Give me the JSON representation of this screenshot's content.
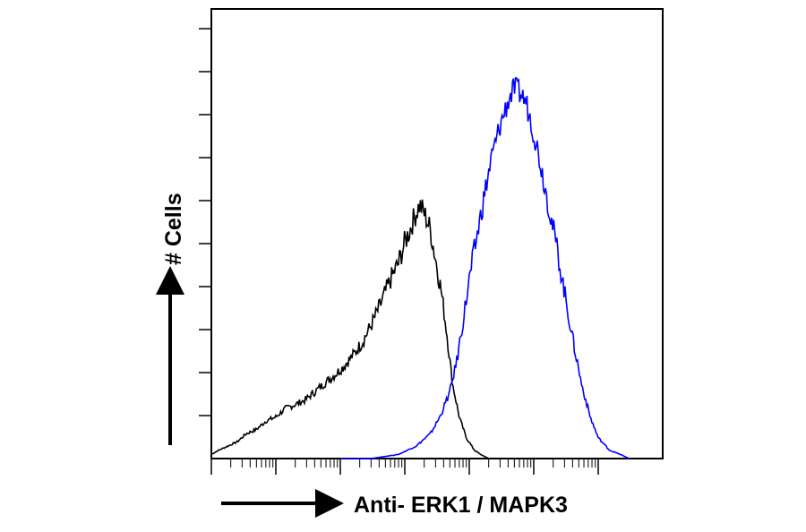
{
  "chart_data": {
    "type": "line",
    "title": "",
    "xlabel": "Anti- ERK1 / MAPK3",
    "ylabel": "# Cells",
    "x_scale": "log",
    "xlim": [
      1,
      10000000
    ],
    "ylim": [
      0,
      100
    ],
    "grid": false,
    "legend": "none",
    "series": [
      {
        "color": "#000000",
        "x": [
          1,
          1.3,
          1.8,
          2.5,
          3.5,
          5,
          7,
          10,
          14,
          20,
          28,
          40,
          56,
          80,
          110,
          160,
          220,
          300,
          420,
          600,
          800,
          1000,
          1200,
          1400,
          1700,
          2000,
          2500,
          3000,
          3700,
          4500,
          5500,
          7000,
          9000,
          12000,
          15000,
          20000
        ],
        "y": [
          1,
          2,
          3,
          4,
          6,
          7,
          9,
          10,
          12,
          13,
          14,
          16,
          18,
          20,
          22,
          25,
          28,
          32,
          37,
          43,
          47,
          52,
          55,
          58,
          61,
          59,
          55,
          48,
          40,
          30,
          18,
          10,
          5,
          2,
          1,
          0
        ]
      },
      {
        "color": "#0000ff",
        "x": [
          100,
          300,
          800,
          1500,
          2500,
          3500,
          5000,
          6500,
          8000,
          10000,
          13000,
          17000,
          22000,
          30000,
          40000,
          50000,
          60000,
          75000,
          95000,
          120000,
          160000,
          220000,
          300000,
          400000,
          550000,
          750000,
          1000000,
          1500000,
          2200000,
          3000000
        ],
        "y": [
          0,
          0,
          1,
          3,
          6,
          10,
          16,
          24,
          33,
          43,
          53,
          63,
          72,
          80,
          86,
          89,
          88,
          86,
          80,
          73,
          63,
          52,
          40,
          29,
          18,
          10,
          5,
          2,
          1,
          0
        ]
      }
    ]
  }
}
